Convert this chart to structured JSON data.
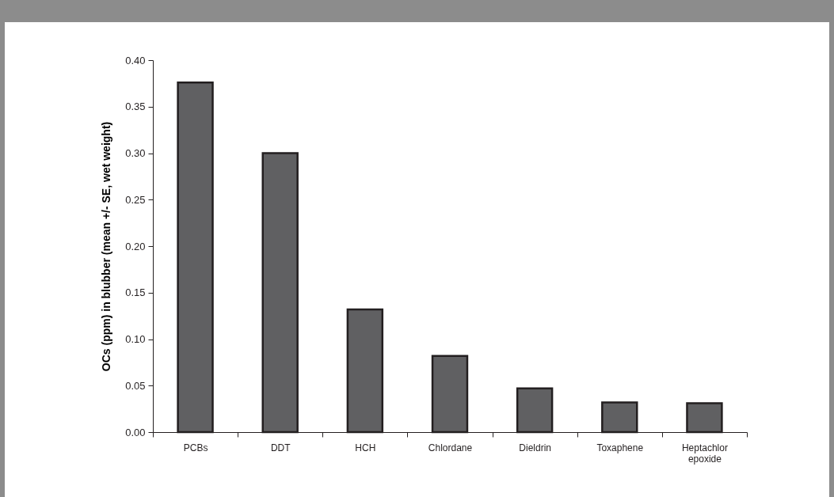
{
  "chart_data": {
    "type": "bar",
    "ylabel": "OCs (ppm) in blubber (mean +/- SE, wet weight)",
    "categories": [
      "PCBs",
      "DDT",
      "HCH",
      "Chlordane",
      "Dieldrin",
      "Toxaphene",
      "Heptachlor epoxide"
    ],
    "values": [
      0.376,
      0.3,
      0.132,
      0.082,
      0.047,
      0.032,
      0.031
    ],
    "color": "#606062",
    "ylim": [
      0,
      0.4
    ],
    "yticks": [
      {
        "value": 0,
        "label": "0.00"
      },
      {
        "value": 0.05,
        "label": "0.05"
      },
      {
        "value": 0.1,
        "label": "0.10"
      },
      {
        "value": 0.15,
        "label": "0.15"
      },
      {
        "value": 0.2,
        "label": "0.20"
      },
      {
        "value": 0.25,
        "label": "0.25"
      },
      {
        "value": 0.3,
        "label": "0.30"
      },
      {
        "value": 0.35,
        "label": "0.35"
      },
      {
        "value": 0.4,
        "label": "0.40"
      }
    ],
    "grid": false
  }
}
